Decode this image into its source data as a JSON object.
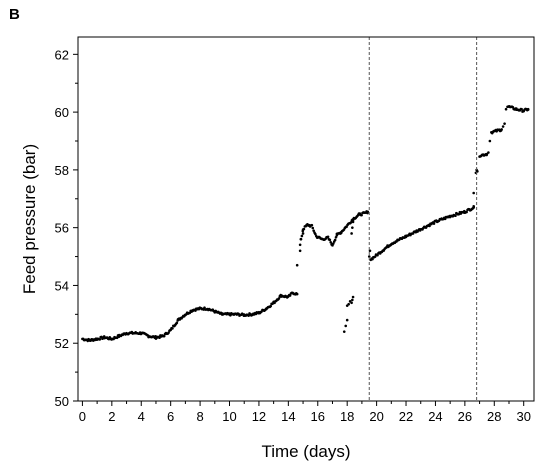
{
  "panel_label": "B",
  "chart_data": {
    "type": "scatter",
    "title": "",
    "xlabel": "Time (days)",
    "ylabel": "Feed pressure (bar)",
    "xlim": [
      -0.3,
      30.7
    ],
    "ylim": [
      50,
      62.6
    ],
    "xticks": [
      0,
      2,
      4,
      6,
      8,
      10,
      12,
      14,
      16,
      18,
      20,
      22,
      24,
      26,
      28,
      30
    ],
    "yticks": [
      50,
      52,
      54,
      56,
      58,
      60,
      62
    ],
    "grid": false,
    "legend": "none",
    "marker_color": "#000000",
    "vlines": [
      19.5,
      26.8
    ],
    "anchors": [
      [
        0,
        52.15
      ],
      [
        0.5,
        52.1
      ],
      [
        1,
        52.15
      ],
      [
        1.5,
        52.2
      ],
      [
        2,
        52.15
      ],
      [
        2.5,
        52.25
      ],
      [
        3,
        52.35
      ],
      [
        3.5,
        52.35
      ],
      [
        4,
        52.35
      ],
      [
        4.5,
        52.25
      ],
      [
        5,
        52.2
      ],
      [
        5.5,
        52.25
      ],
      [
        6,
        52.45
      ],
      [
        6.5,
        52.8
      ],
      [
        7,
        53.0
      ],
      [
        7.5,
        53.15
      ],
      [
        8,
        53.2
      ],
      [
        8.5,
        53.2
      ],
      [
        9,
        53.1
      ],
      [
        9.5,
        53.0
      ],
      [
        10,
        53.0
      ],
      [
        10.5,
        53.0
      ],
      [
        11,
        52.98
      ],
      [
        11.5,
        53.0
      ],
      [
        12,
        53.05
      ],
      [
        12.5,
        53.2
      ],
      [
        13,
        53.4
      ],
      [
        13.5,
        53.65
      ],
      [
        14,
        53.6
      ],
      [
        14.3,
        53.75
      ],
      [
        14.6,
        53.7
      ],
      [
        14.8,
        55.4
      ],
      [
        15,
        55.95
      ],
      [
        15.3,
        56.1
      ],
      [
        15.6,
        56.05
      ],
      [
        15.9,
        55.7
      ],
      [
        16.3,
        55.6
      ],
      [
        16.7,
        55.65
      ],
      [
        17.0,
        55.4
      ],
      [
        17.3,
        55.75
      ],
      [
        17.6,
        55.85
      ],
      [
        18.4,
        56.3
      ],
      [
        18.8,
        56.45
      ],
      [
        19.2,
        56.5
      ],
      [
        19.4,
        56.55
      ],
      [
        19.6,
        54.9
      ],
      [
        20,
        55.05
      ],
      [
        20.5,
        55.25
      ],
      [
        21,
        55.45
      ],
      [
        22,
        55.7
      ],
      [
        23,
        55.95
      ],
      [
        24,
        56.2
      ],
      [
        25,
        56.4
      ],
      [
        26,
        56.55
      ],
      [
        26.6,
        56.7
      ],
      [
        27.0,
        58.5
      ],
      [
        27.5,
        58.55
      ],
      [
        27.8,
        59.3
      ],
      [
        28.5,
        59.4
      ],
      [
        28.9,
        60.2
      ],
      [
        29.5,
        60.1
      ],
      [
        30,
        60.05
      ],
      [
        30.3,
        60.1
      ]
    ],
    "transition_points": [
      [
        14.6,
        54.7
      ],
      [
        14.8,
        55.2
      ],
      [
        14.85,
        55.6
      ],
      [
        15.0,
        55.8
      ],
      [
        17.8,
        52.4
      ],
      [
        17.9,
        52.6
      ],
      [
        18.0,
        52.8
      ],
      [
        18.0,
        53.3
      ],
      [
        18.1,
        53.35
      ],
      [
        18.2,
        53.45
      ],
      [
        18.3,
        53.4
      ],
      [
        18.35,
        53.5
      ],
      [
        18.4,
        53.6
      ],
      [
        18.3,
        55.8
      ],
      [
        18.35,
        56.0
      ],
      [
        18.4,
        56.2
      ],
      [
        19.5,
        55.0
      ],
      [
        19.55,
        55.2
      ],
      [
        26.6,
        57.2
      ],
      [
        26.75,
        57.9
      ],
      [
        26.8,
        58.0
      ],
      [
        26.85,
        57.95
      ],
      [
        27.6,
        58.6
      ],
      [
        27.7,
        59.0
      ],
      [
        28.6,
        59.5
      ],
      [
        28.7,
        59.6
      ],
      [
        28.8,
        60.1
      ]
    ],
    "noise": 0.04,
    "sample_step": 0.06
  }
}
